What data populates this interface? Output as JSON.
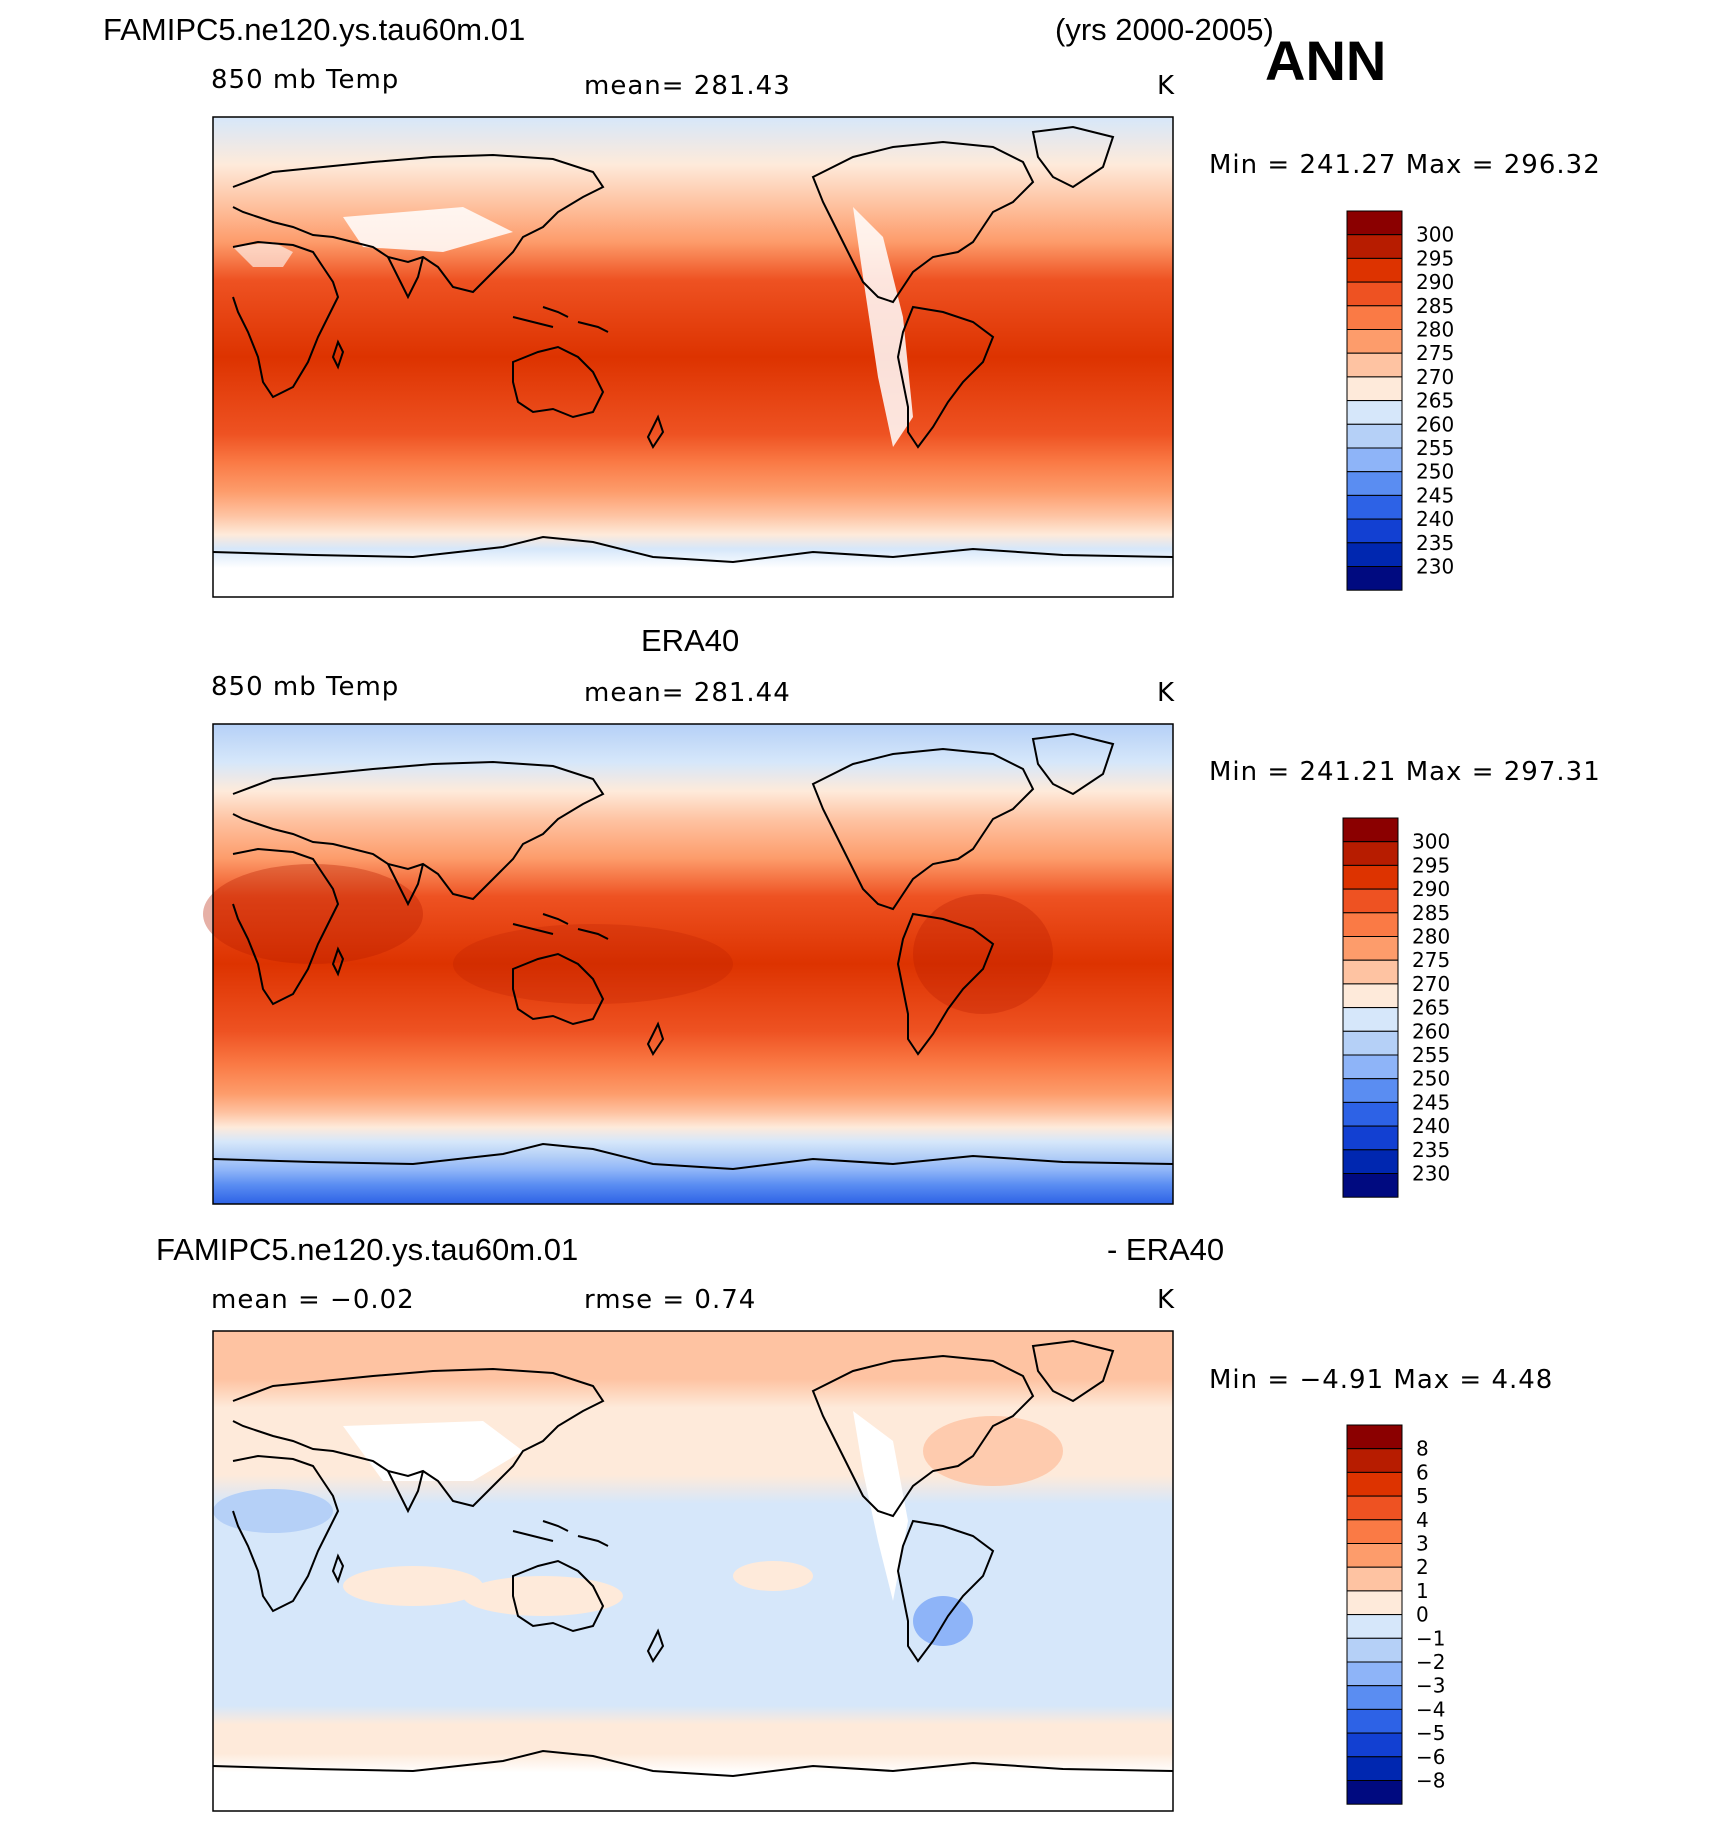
{
  "header": {
    "case_name": "FAMIPC5.ne120.ys.tau60m.01",
    "years": "(yrs 2000-2005)",
    "season": "ANN"
  },
  "panels": [
    {
      "id": "model",
      "field": "850 mb Temp",
      "mean": "mean=  281.43",
      "units": "K",
      "minmax": "Min  =  241.27  Max  =  296.32",
      "colorbar": "temp"
    },
    {
      "id": "obs",
      "title": "ERA40",
      "field": "850 mb Temp",
      "mean": "mean=  281.44",
      "units": "K",
      "minmax": "Min  =  241.21  Max  =  297.31",
      "colorbar": "temp"
    },
    {
      "id": "diff",
      "title_left": "FAMIPC5.ne120.ys.tau60m.01",
      "title_right": "- ERA40",
      "mean": "mean  =    −0.02",
      "rmse": "rmse  =     0.74",
      "units": "K",
      "minmax": "Min  =    −4.91  Max  =      4.48",
      "colorbar": "diff"
    }
  ],
  "colorbars": {
    "temp": {
      "labels": [
        "300",
        "295",
        "290",
        "285",
        "280",
        "275",
        "270",
        "265",
        "260",
        "255",
        "250",
        "245",
        "240",
        "235",
        "230"
      ],
      "colors": [
        "#8b0000",
        "#b71c00",
        "#dd3300",
        "#ee5222",
        "#fa7a45",
        "#fd9c6b",
        "#fec3a2",
        "#feeada",
        "#d6e7fa",
        "#b5d0f7",
        "#8eb4f8",
        "#5a8df2",
        "#2d62e6",
        "#1240d2",
        "#0027b0",
        "#000a80"
      ]
    },
    "diff": {
      "labels": [
        "8",
        "6",
        "5",
        "4",
        "3",
        "2",
        "1",
        "0",
        "−1",
        "−2",
        "−3",
        "−4",
        "−5",
        "−6",
        "−8"
      ],
      "colors": [
        "#8b0000",
        "#b71c00",
        "#dd3300",
        "#ee5222",
        "#fa7a45",
        "#fd9c6b",
        "#fec3a2",
        "#feeada",
        "#d6e7fa",
        "#b5d0f7",
        "#8eb4f8",
        "#5a8df2",
        "#2d62e6",
        "#1240d2",
        "#0027b0",
        "#000a80"
      ]
    }
  }
}
